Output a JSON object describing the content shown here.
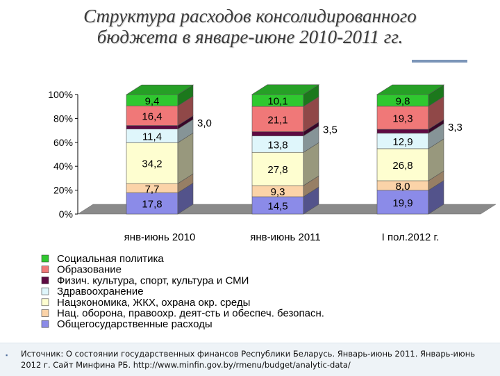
{
  "slide": {
    "title_line1": "Структура расходов консолидированного",
    "title_line2": "бюджета в январе-июне 2010-2011 гг.",
    "footer_bullet": "▪",
    "footer_text": "Источник: О состоянии государственных финансов Республики Беларусь. Январь-июнь 2011. Январь-июнь 2012 г. Сайт Минфина РБ. http://www.minfin.gov.by/rmenu/budget/analytic-data/"
  },
  "chart_data": {
    "type": "bar",
    "stacked": true,
    "percent": true,
    "three_d": true,
    "categories": [
      "янв-июнь 2010",
      "янв-июнь 2011",
      "I пол.2012 г."
    ],
    "y_ticks": [
      "0%",
      "20%",
      "40%",
      "60%",
      "80%",
      "100%"
    ],
    "ylim": [
      0,
      100
    ],
    "legend_position": "bottom-left",
    "series": [
      {
        "name": "Общегосударственные расходы",
        "values": [
          17.8,
          14.5,
          19.9
        ],
        "labels": [
          "17,8",
          "14,5",
          "19,9"
        ],
        "color": "#8b8be8"
      },
      {
        "name": "Нац. оборона, правоохр. деят-сть и обеспеч. безопасн.",
        "values": [
          7.7,
          9.3,
          8.0
        ],
        "labels": [
          "7,7",
          "9,3",
          "8,0"
        ],
        "color": "#fbd3a8"
      },
      {
        "name": "Нацэкономика, ЖКХ, охрана окр. среды",
        "values": [
          34.2,
          27.8,
          26.8
        ],
        "labels": [
          "34,2",
          "27,8",
          "26,8"
        ],
        "color": "#fefed0"
      },
      {
        "name": "Здравоохранение",
        "values": [
          11.4,
          13.8,
          12.9
        ],
        "labels": [
          "11,4",
          "13,8",
          "12,9"
        ],
        "color": "#dff6fb"
      },
      {
        "name": "Физич. культура, спорт, культура и СМИ",
        "values": [
          3.0,
          3.5,
          3.3
        ],
        "labels": [
          "3,0",
          "3,5",
          "3,3"
        ],
        "color": "#5e0a42"
      },
      {
        "name": "Образование",
        "values": [
          16.4,
          21.1,
          19.3
        ],
        "labels": [
          "16,4",
          "21,1",
          "19,3"
        ],
        "color": "#f07878"
      },
      {
        "name": "Социальная политика",
        "values": [
          9.4,
          10.1,
          9.8
        ],
        "labels": [
          "9,4",
          "10,1",
          "9,8"
        ],
        "color": "#2fc82f"
      }
    ],
    "legend_order": [
      6,
      5,
      4,
      3,
      2,
      1,
      0
    ]
  }
}
